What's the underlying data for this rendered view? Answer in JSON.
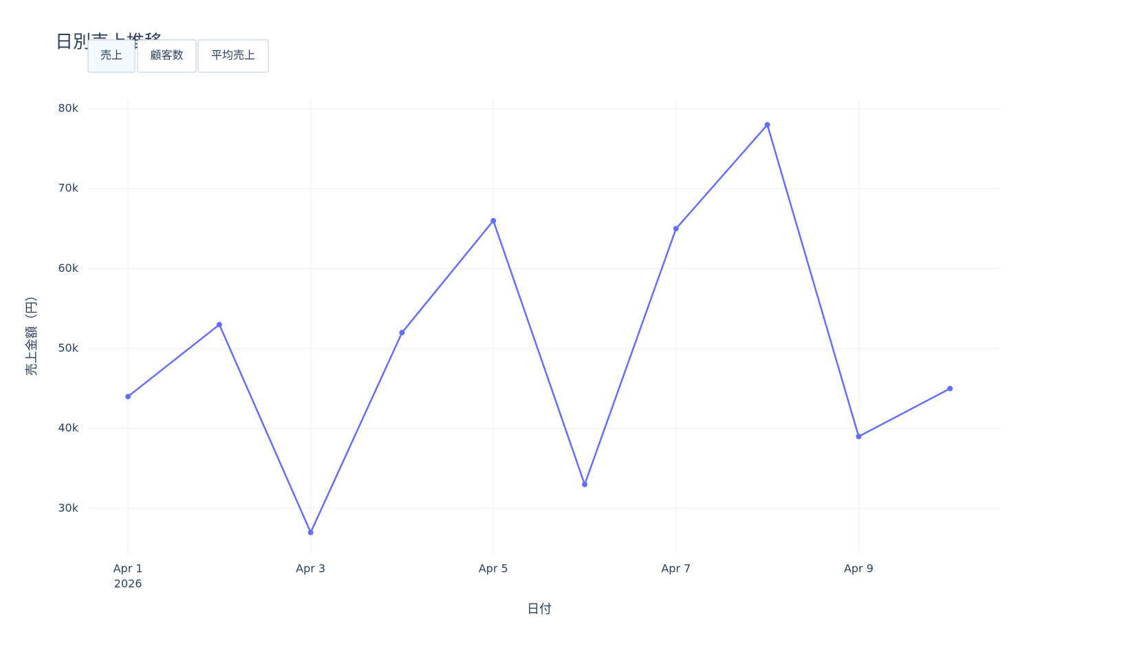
{
  "chart_data": {
    "type": "line",
    "title": "日別売上推移",
    "buttons": [
      "売上",
      "顧客数",
      "平均売上"
    ],
    "active_button": 0,
    "x_label": "日付",
    "y_label": "売上金額（円）",
    "x": [
      "2026-04-01",
      "2026-04-02",
      "2026-04-03",
      "2026-04-04",
      "2026-04-05",
      "2026-04-06",
      "2026-04-07",
      "2026-04-08",
      "2026-04-09",
      "2026-04-10"
    ],
    "values": [
      44000,
      53000,
      27000,
      52000,
      66000,
      33000,
      65000,
      78000,
      39000,
      45000
    ],
    "color": "#636efa",
    "xlim": [
      "2026-03-31T13:30",
      "2026-04-10T13:00"
    ],
    "xticks": [
      {
        "value": "2026-04-01",
        "label": "Apr 1"
      },
      {
        "value": "2026-04-03",
        "label": "Apr 3"
      },
      {
        "value": "2026-04-05",
        "label": "Apr 5"
      },
      {
        "value": "2026-04-07",
        "label": "Apr 7"
      },
      {
        "value": "2026-04-09",
        "label": "Apr 9"
      }
    ],
    "xtick_year": "2026",
    "ylim": [
      24300,
      81300
    ],
    "yticks": [
      {
        "value": 30000,
        "label": "30k"
      },
      {
        "value": 40000,
        "label": "40k"
      },
      {
        "value": 50000,
        "label": "50k"
      },
      {
        "value": 60000,
        "label": "60k"
      },
      {
        "value": 70000,
        "label": "70k"
      },
      {
        "value": 80000,
        "label": "80k"
      }
    ],
    "grid": true
  }
}
